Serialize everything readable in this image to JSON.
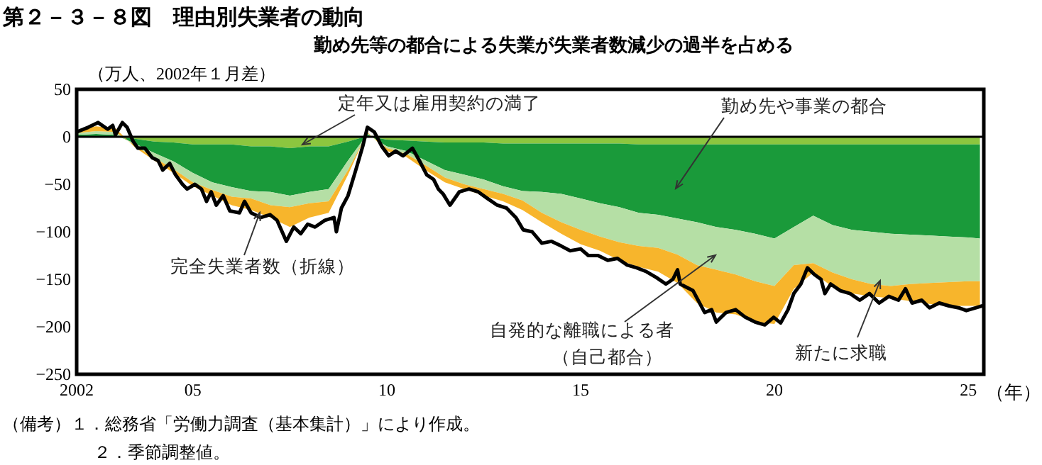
{
  "chart_data": {
    "type": "area",
    "stacked": true,
    "title": "第２－３－８図　理由別失業者の動向",
    "subtitle": "勤め先等の都合による失業が失業者数減少の過半を占める",
    "ylabel": "（万人、2002年１月差）",
    "xlabel": "（年）",
    "annotations": [
      "（備考）１．総務省「労働力調査（基本集計）」により作成。",
      "２．季節調整値。"
    ],
    "xlim": [
      2002,
      2025.4
    ],
    "ylim": [
      -250,
      50
    ],
    "xticks": [
      2002,
      {
        "value": 2005,
        "label": "05"
      },
      {
        "value": 2010,
        "label": "10"
      },
      {
        "value": 2015,
        "label": "15"
      },
      {
        "value": 2020,
        "label": "20"
      },
      {
        "value": 2025,
        "label": "25"
      }
    ],
    "yticks": [
      -250,
      -200,
      -150,
      -100,
      -50,
      0,
      50
    ],
    "ref_lines": [
      {
        "axis": "y",
        "value": 0,
        "color": "#000000"
      }
    ],
    "x": [
      2002.0,
      2002.5,
      2003.0,
      2003.5,
      2004.0,
      2004.5,
      2005.0,
      2005.5,
      2006.0,
      2006.5,
      2007.0,
      2007.5,
      2008.0,
      2008.5,
      2009.0,
      2009.5,
      2010.0,
      2010.5,
      2011.0,
      2011.5,
      2012.0,
      2012.5,
      2013.0,
      2013.5,
      2014.0,
      2014.5,
      2015.0,
      2015.5,
      2016.0,
      2016.5,
      2017.0,
      2017.5,
      2018.0,
      2018.5,
      2019.0,
      2019.5,
      2020.0,
      2020.5,
      2021.0,
      2021.5,
      2022.0,
      2022.5,
      2023.0,
      2023.5,
      2024.0,
      2024.5,
      2025.0,
      2025.3
    ],
    "series": [
      {
        "name": "定年又は雇用契約の満了",
        "color": "#8cc63f",
        "values": [
          0,
          0,
          0,
          -2,
          -5,
          -6,
          -8,
          -8,
          -8,
          -10,
          -10,
          -12,
          -10,
          -10,
          -5,
          1,
          -3,
          -4,
          -5,
          -6,
          -6,
          -6,
          -7,
          -7,
          -7,
          -7,
          -7,
          -7,
          -7,
          -8,
          -8,
          -8,
          -8,
          -8,
          -8,
          -8,
          -8,
          -8,
          -8,
          -8,
          -8,
          -8,
          -8,
          -8,
          -8,
          -8,
          -8,
          -8
        ]
      },
      {
        "name": "勤め先や事業の都合",
        "color": "#1a9a3a",
        "values": [
          2,
          3,
          2,
          -5,
          -12,
          -20,
          -30,
          -40,
          -45,
          -47,
          -48,
          -50,
          -48,
          -45,
          -20,
          2,
          -7,
          -11,
          -20,
          -29,
          -34,
          -39,
          -45,
          -50,
          -51,
          -53,
          -58,
          -63,
          -67,
          -72,
          -74,
          -78,
          -82,
          -87,
          -90,
          -94,
          -99,
          -87,
          -75,
          -85,
          -90,
          -92,
          -94,
          -95,
          -96,
          -97,
          -98,
          -99
        ]
      },
      {
        "name": "自発的な離職による者（自己都合）",
        "color": "#b5dfa5",
        "values": [
          2,
          3,
          3,
          -2,
          -5,
          -8,
          -10,
          -8,
          -10,
          -8,
          -14,
          -12,
          -12,
          -13,
          -10,
          1,
          -2,
          -3,
          -5,
          -8,
          -10,
          -10,
          -8,
          -10,
          -22,
          -30,
          -33,
          -35,
          -37,
          -35,
          -35,
          -38,
          -45,
          -45,
          -47,
          -50,
          -50,
          -40,
          -50,
          -50,
          -52,
          -55,
          -55,
          -52,
          -50,
          -48,
          -46,
          -45
        ]
      },
      {
        "name": "新たに求職",
        "color": "#f7b52c",
        "values": [
          3,
          5,
          4,
          -2,
          -3,
          -4,
          -4,
          -6,
          -9,
          -12,
          -13,
          -21,
          -15,
          -12,
          -5,
          1,
          -3,
          -3,
          -5,
          -5,
          -5,
          -7,
          -8,
          -10,
          -10,
          -12,
          -15,
          -15,
          -19,
          -22,
          -25,
          -30,
          -40,
          -45,
          -42,
          -43,
          -40,
          -25,
          -10,
          -15,
          -15,
          -13,
          -13,
          -18,
          -22,
          -25,
          -26,
          -26
        ]
      },
      {
        "name": "完全失業者数（折線）",
        "type": "line",
        "color": "#000000",
        "line_style": "solid",
        "x": [
          2002.0,
          2002.3,
          2002.55,
          2002.8,
          2002.93,
          2003.0,
          2003.18,
          2003.3,
          2003.46,
          2003.58,
          2003.76,
          2003.95,
          2004.1,
          2004.22,
          2004.4,
          2004.55,
          2004.73,
          2004.85,
          2005.05,
          2005.22,
          2005.35,
          2005.47,
          2005.6,
          2005.78,
          2005.95,
          2006.2,
          2006.33,
          2006.5,
          2006.75,
          2006.99,
          2007.17,
          2007.41,
          2007.6,
          2007.78,
          2007.96,
          2008.15,
          2008.4,
          2008.64,
          2008.7,
          2008.83,
          2009.0,
          2009.2,
          2009.38,
          2009.5,
          2009.68,
          2009.87,
          2010.05,
          2010.23,
          2010.42,
          2010.66,
          2010.84,
          2011.03,
          2011.21,
          2011.33,
          2011.45,
          2011.63,
          2011.87,
          2012.12,
          2012.36,
          2012.6,
          2012.85,
          2013.09,
          2013.33,
          2013.52,
          2013.75,
          2014.0,
          2014.25,
          2014.5,
          2014.73,
          2015.0,
          2015.2,
          2015.45,
          2015.7,
          2015.95,
          2016.2,
          2016.45,
          2016.7,
          2016.95,
          2017.2,
          2017.38,
          2017.5,
          2017.57,
          2017.9,
          2018.2,
          2018.38,
          2018.5,
          2018.75,
          2019.0,
          2019.25,
          2019.5,
          2019.75,
          2019.98,
          2020.16,
          2020.35,
          2020.5,
          2020.68,
          2020.85,
          2021.03,
          2021.2,
          2021.3,
          2021.45,
          2021.7,
          2021.95,
          2022.2,
          2022.45,
          2022.7,
          2022.95,
          2023.2,
          2023.38,
          2023.55,
          2023.8,
          2024.0,
          2024.25,
          2024.5,
          2024.75,
          2024.95,
          2025.2,
          2025.35
        ],
        "values": [
          5,
          10,
          15,
          8,
          12,
          2,
          15,
          10,
          -5,
          -12,
          -12,
          -22,
          -25,
          -35,
          -28,
          -40,
          -50,
          -55,
          -50,
          -55,
          -68,
          -58,
          -72,
          -62,
          -78,
          -80,
          -68,
          -80,
          -85,
          -82,
          -88,
          -110,
          -95,
          -102,
          -92,
          -95,
          -88,
          -85,
          -100,
          -75,
          -62,
          -35,
          -10,
          10,
          5,
          -10,
          -20,
          -15,
          -20,
          -12,
          -25,
          -40,
          -45,
          -55,
          -60,
          -72,
          -58,
          -55,
          -58,
          -65,
          -72,
          -75,
          -85,
          -98,
          -100,
          -112,
          -110,
          -115,
          -120,
          -118,
          -125,
          -125,
          -130,
          -128,
          -135,
          -138,
          -142,
          -148,
          -155,
          -150,
          -140,
          -155,
          -162,
          -185,
          -182,
          -195,
          -185,
          -182,
          -190,
          -195,
          -198,
          -190,
          -196,
          -182,
          -165,
          -155,
          -138,
          -145,
          -150,
          -165,
          -155,
          -162,
          -165,
          -172,
          -165,
          -175,
          -168,
          -172,
          -160,
          -175,
          -172,
          -180,
          -175,
          -178,
          -180,
          -183,
          -180,
          -178
        ]
      }
    ]
  }
}
